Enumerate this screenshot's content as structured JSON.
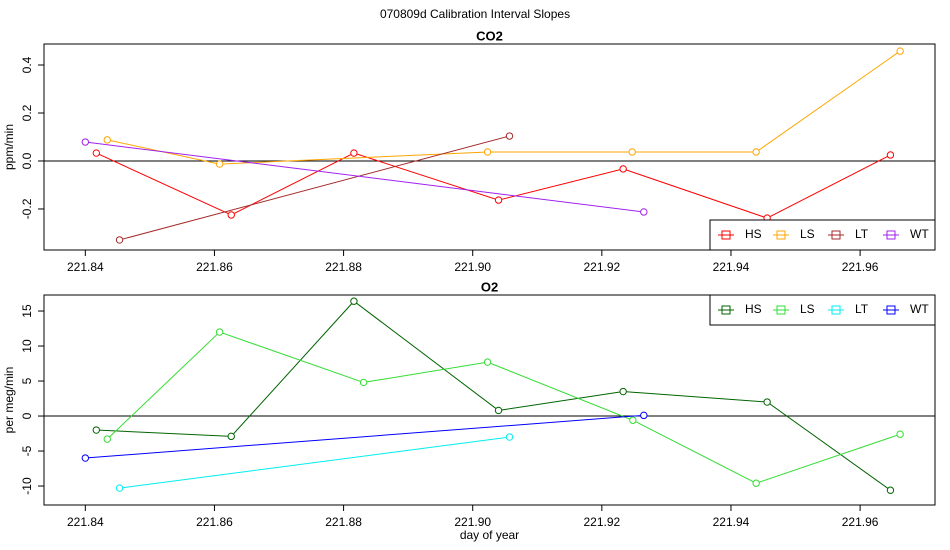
{
  "title": "070809d   Calibration Interval Slopes",
  "chart_data": [
    {
      "type": "line",
      "title": "CO2",
      "ylabel": "ppm/min",
      "xlim": [
        221.8336,
        221.9716
      ],
      "ylim": [
        -0.371,
        0.4875
      ],
      "xticks": [
        221.84,
        221.86,
        221.88,
        {
          "value": 221.9,
          "label": "221.90"
        },
        221.92,
        221.94,
        221.96
      ],
      "yticks": [
        -0.2,
        {
          "value": 0,
          "label": "0.0"
        },
        0.2,
        0.4
      ],
      "hline": 0,
      "legend": "bottom-right",
      "series": [
        {
          "name": "HS",
          "color": "#ff0000",
          "x": [
            221.8417,
            221.8626,
            221.8816,
            221.904,
            221.9233,
            221.9456,
            221.9647
          ],
          "values": [
            0.033,
            -0.225,
            0.033,
            -0.163,
            -0.033,
            -0.238,
            0.025
          ]
        },
        {
          "name": "LS",
          "color": "#ffa500",
          "x": [
            221.8434,
            221.8608,
            221.9023,
            221.9247,
            221.9439,
            221.9662
          ],
          "values": [
            0.088,
            -0.013,
            0.0375,
            0.0375,
            0.0375,
            0.458
          ]
        },
        {
          "name": "LT",
          "color": "#a52a2a",
          "x": [
            221.8453,
            221.9057
          ],
          "values": [
            -0.329,
            0.104
          ]
        },
        {
          "name": "WT",
          "color": "#a020f0",
          "x": [
            221.84,
            221.9265
          ],
          "values": [
            0.079,
            -0.2125
          ]
        }
      ]
    },
    {
      "type": "line",
      "title": "O2",
      "ylabel": "per meg/min",
      "xlabel": "day of year",
      "xlim": [
        221.8336,
        221.9716
      ],
      "ylim": [
        -12.71,
        17.29
      ],
      "xticks": [
        221.84,
        221.86,
        221.88,
        {
          "value": 221.9,
          "label": "221.90"
        },
        221.92,
        221.94,
        221.96
      ],
      "yticks": [
        -10,
        -5,
        0,
        5,
        10,
        15
      ],
      "hline": 0,
      "legend": "top-right",
      "series": [
        {
          "name": "HS",
          "color": "#006400",
          "x": [
            221.8417,
            221.8626,
            221.8816,
            221.904,
            221.9233,
            221.9456,
            221.9647
          ],
          "values": [
            -2,
            -2.9,
            16.4,
            0.8,
            3.5,
            2.0,
            -10.6
          ]
        },
        {
          "name": "LS",
          "color": "#33dd33",
          "x": [
            221.8434,
            221.8608,
            221.8831,
            221.9023,
            221.9248,
            221.9439,
            221.9662
          ],
          "values": [
            -3.3,
            12,
            4.8,
            7.7,
            -0.6,
            -9.6,
            -2.6
          ]
        },
        {
          "name": "LT",
          "color": "#00eeee",
          "x": [
            221.8453,
            221.9057
          ],
          "values": [
            -10.3,
            -3
          ]
        },
        {
          "name": "WT",
          "color": "#0000ff",
          "x": [
            221.84,
            221.9265
          ],
          "values": [
            -6,
            0.1
          ]
        }
      ]
    }
  ]
}
